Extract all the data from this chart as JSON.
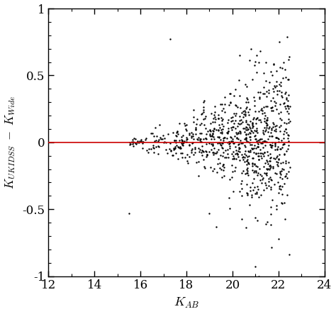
{
  "xlim": [
    12,
    24
  ],
  "ylim": [
    -1,
    1
  ],
  "xticks": [
    12,
    14,
    16,
    18,
    20,
    22,
    24
  ],
  "yticks": [
    -1,
    -0.5,
    0,
    0.5,
    1
  ],
  "ytick_labels": [
    "-1",
    "-0.5",
    "0",
    "0.5",
    "1"
  ],
  "hline_y": 0,
  "hline_color": "#cc0000",
  "dot_color": "black",
  "dot_size": 3,
  "background_color": "white",
  "seed": 42,
  "n_points": 900,
  "figsize": [
    4.74,
    4.43
  ],
  "dpi": 100
}
